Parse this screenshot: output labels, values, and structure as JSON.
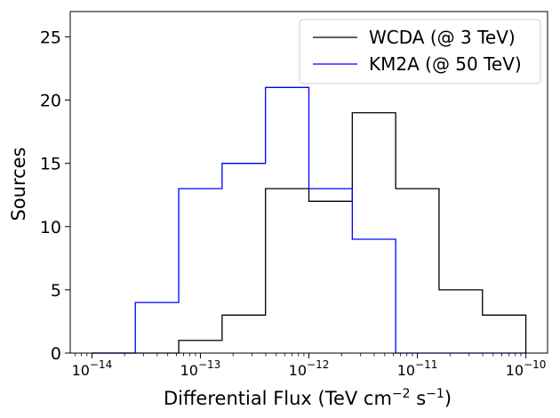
{
  "chart_data": {
    "type": "histogram",
    "xlabel_main": "Differential Flux (TeV cm",
    "xlabel_exp1": "−2",
    "xlabel_mid": " s",
    "xlabel_exp2": "−1",
    "xlabel_end": ")",
    "ylabel": "Sources",
    "xscale": "log",
    "xlim": [
      -14.2,
      -9.8
    ],
    "ylim": [
      0,
      27
    ],
    "x_ticks": [
      {
        "base": "10",
        "exp": "−14"
      },
      {
        "base": "10",
        "exp": "−13"
      },
      {
        "base": "10",
        "exp": "−12"
      },
      {
        "base": "10",
        "exp": "−11"
      },
      {
        "base": "10",
        "exp": "−10"
      }
    ],
    "y_ticks": [
      "0",
      "5",
      "10",
      "15",
      "20",
      "25"
    ],
    "legend_position": "top-right",
    "bin_edges_log10": [
      -14.0,
      -13.6,
      -13.2,
      -12.8,
      -12.4,
      -12.0,
      -11.6,
      -11.2,
      -10.8,
      -10.4,
      -10.0
    ],
    "series": [
      {
        "name": "WCDA (@ 3 TeV)",
        "color": "#000000",
        "values": [
          0,
          0,
          1,
          3,
          13,
          12,
          19,
          13,
          5,
          3,
          0
        ]
      },
      {
        "name": "KM2A (@ 50 TeV)",
        "color": "#0000ff",
        "values": [
          0,
          4,
          13,
          15,
          21,
          13,
          9,
          0,
          0,
          0,
          0
        ]
      }
    ]
  }
}
